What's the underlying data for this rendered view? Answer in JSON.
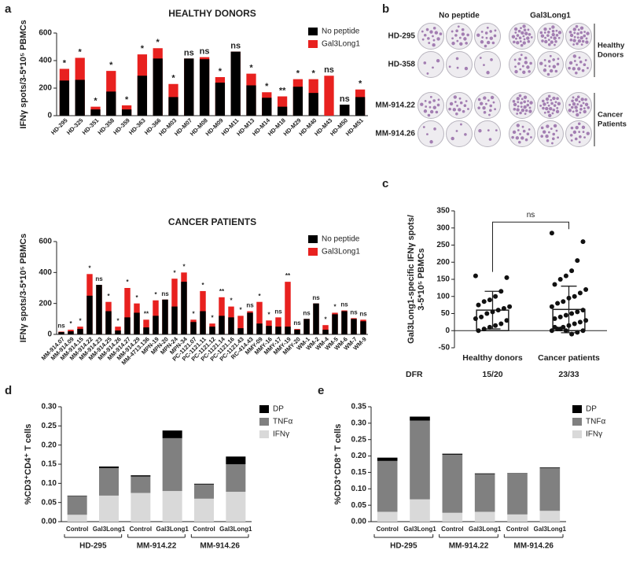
{
  "chart_data": [
    {
      "type": "bar",
      "bar_mode": "overlay",
      "panel_label": "a",
      "title": "HEALTHY DONORS",
      "y_label": [
        "IFNγ spots/3-5*10⁵ PBMCs"
      ],
      "legend": "upper right",
      "categories": [
        "HD-295",
        "HD-325",
        "HD-351",
        "HD-358",
        "HD-359",
        "HD-363",
        "HD-366",
        "HD-M03",
        "HD-M07",
        "HD-M08",
        "HD-M09",
        "HD-M11",
        "HD-M13",
        "HD-M14",
        "HD-M18",
        "HD-M29",
        "HD-M40",
        "HD-M43",
        "HD-M50",
        "HD-M51"
      ],
      "series": [
        {
          "name": "No peptide",
          "color": "#000000",
          "values": [
            255,
            260,
            45,
            175,
            45,
            290,
            415,
            135,
            415,
            410,
            240,
            465,
            220,
            130,
            65,
            210,
            165,
            0,
            80,
            135
          ]
        },
        {
          "name": "Gal3Long1",
          "color": "#e8211f",
          "values": [
            340,
            420,
            65,
            325,
            75,
            445,
            490,
            230,
            415,
            425,
            280,
            465,
            305,
            170,
            140,
            265,
            265,
            290,
            80,
            190
          ]
        }
      ],
      "annotations": [
        "*",
        "*",
        "*",
        "*",
        "*",
        "*",
        "*",
        "*",
        "ns",
        "ns",
        "*",
        "ns",
        "*",
        "*",
        "**",
        "*",
        "*",
        "ns",
        "ns",
        "*"
      ],
      "ylim": [
        0,
        600
      ],
      "yticks": [
        0,
        200,
        400,
        600
      ]
    },
    {
      "type": "bar",
      "bar_mode": "overlay",
      "title": "CANCER PATIENTS",
      "y_label": [
        "IFNγ spots/3-5*10⁵ PBMCs"
      ],
      "legend": "upper right",
      "categories": [
        "MM-914.07",
        "MM-914.09",
        "MM-914.15",
        "MM-914.22",
        "MM-914.23",
        "MM-914.25",
        "MM-914.26",
        "MM-914.27",
        "MM-914.29",
        "MM-4713.136",
        "MPN-19",
        "MPN-20",
        "MPN-24",
        "MPN-34",
        "PC-1121.07",
        "PC-1121.11",
        "PC-1121.12",
        "PC-1121.14",
        "PC-1121.16",
        "PC-1121.43",
        "RC-414.43",
        "MMY-09",
        "MMY-16",
        "MMY-17",
        "MMY-19",
        "MMY-20",
        "WM-1",
        "WM-2",
        "WM-4",
        "WM-5",
        "WM-6",
        "WM-7",
        "WM-9"
      ],
      "series": [
        {
          "name": "No peptide",
          "color": "#000000",
          "values": [
            15,
            20,
            35,
            250,
            320,
            150,
            25,
            110,
            140,
            45,
            120,
            225,
            180,
            340,
            80,
            150,
            50,
            120,
            110,
            40,
            140,
            70,
            55,
            50,
            50,
            30,
            100,
            200,
            30,
            130,
            150,
            100,
            85
          ]
        },
        {
          "name": "Gal3Long1",
          "color": "#e8211f",
          "values": [
            18,
            30,
            50,
            390,
            320,
            210,
            50,
            300,
            200,
            95,
            220,
            225,
            360,
            400,
            95,
            280,
            70,
            240,
            180,
            120,
            150,
            210,
            90,
            110,
            340,
            35,
            100,
            200,
            60,
            140,
            155,
            105,
            95
          ]
        }
      ],
      "annotations": [
        "ns",
        "*",
        "*",
        "*",
        "ns",
        "*",
        "*",
        "*",
        "*",
        "**",
        "*",
        "ns",
        "*",
        "*",
        "*",
        "*",
        "*",
        "**",
        "*",
        "*",
        "ns",
        "*",
        "*",
        "ns",
        "**",
        "ns",
        "ns",
        "ns",
        "*",
        "*",
        "ns",
        "ns",
        "ns"
      ],
      "ylim": [
        0,
        600
      ],
      "yticks": [
        0,
        200,
        400,
        600
      ]
    },
    {
      "type": "scatter",
      "panel_label": "c",
      "y_label": [
        "Gal3Long1-specific IFNγ spots/",
        "3-5*10⁵ PBMCs"
      ],
      "categories": [
        "Healthy donors",
        "Cancer patients"
      ],
      "means": [
        60,
        62
      ],
      "sds": [
        55,
        68
      ],
      "points": [
        [
          160,
          155,
          115,
          100,
          90,
          85,
          75,
          70,
          65,
          60,
          55,
          50,
          40,
          35,
          30,
          20,
          15,
          10,
          5,
          0
        ],
        [
          285,
          260,
          205,
          175,
          160,
          150,
          135,
          120,
          110,
          100,
          95,
          85,
          80,
          70,
          60,
          55,
          50,
          45,
          40,
          35,
          30,
          25,
          20,
          15,
          10,
          5,
          0,
          0,
          -5,
          -10,
          0,
          5,
          10
        ]
      ],
      "annotation": "ns",
      "footer_label": "DFR",
      "footer_values": [
        "15/20",
        "23/33"
      ],
      "ylim": [
        -50,
        350
      ],
      "yticks": [
        -50,
        0,
        50,
        100,
        150,
        200,
        250,
        300,
        350
      ]
    },
    {
      "type": "bar",
      "bar_mode": "stacked",
      "panel_label": "d",
      "y_label": [
        "%CD3⁺CD4⁺ T cells"
      ],
      "legend": "right",
      "categories": [
        "Control",
        "Gal3Long1",
        "Control",
        "Gal3Long1",
        "Control",
        "Gal3Long1"
      ],
      "group_labels": [
        "HD-295",
        "MM-914.22",
        "MM-914.26"
      ],
      "series": [
        {
          "name": "IFNγ",
          "color": "#d9d9d9",
          "values": [
            0.018,
            0.068,
            0.075,
            0.08,
            0.06,
            0.078
          ]
        },
        {
          "name": "TNFα",
          "color": "#808080",
          "values": [
            0.049,
            0.072,
            0.043,
            0.138,
            0.037,
            0.072
          ]
        },
        {
          "name": "DP",
          "color": "#000000",
          "values": [
            0.001,
            0.004,
            0.003,
            0.02,
            0.002,
            0.02
          ]
        }
      ],
      "ylim": [
        0,
        0.3
      ],
      "yticks": [
        {
          "value": 0,
          "label": "0.00"
        },
        {
          "value": 0.05,
          "label": "0.05"
        },
        {
          "value": 0.1,
          "label": "0.10"
        },
        {
          "value": 0.15,
          "label": "0.15"
        },
        {
          "value": 0.2,
          "label": "0.20"
        },
        {
          "value": 0.25,
          "label": "0.25"
        },
        {
          "value": 0.3,
          "label": "0.30"
        }
      ]
    },
    {
      "type": "bar",
      "bar_mode": "stacked",
      "panel_label": "e",
      "y_label": [
        "%CD3⁺CD8⁺ T cells"
      ],
      "legend": "right",
      "categories": [
        "Control",
        "Gal3Long1",
        "Control",
        "Gal3Long1",
        "Control",
        "Gal3Long1"
      ],
      "group_labels": [
        "HD-295",
        "MM-914.22",
        "MM-914.26"
      ],
      "series": [
        {
          "name": "IFNγ",
          "color": "#d9d9d9",
          "values": [
            0.03,
            0.068,
            0.027,
            0.03,
            0.022,
            0.033
          ]
        },
        {
          "name": "TNFα",
          "color": "#808080",
          "values": [
            0.155,
            0.24,
            0.177,
            0.115,
            0.125,
            0.13
          ]
        },
        {
          "name": "DP",
          "color": "#000000",
          "values": [
            0.01,
            0.012,
            0.003,
            0.002,
            0.001,
            0.002
          ]
        }
      ],
      "ylim": [
        0,
        0.35
      ],
      "yticks": [
        {
          "value": 0,
          "label": "0.00"
        },
        {
          "value": 0.05,
          "label": "0.05"
        },
        {
          "value": 0.1,
          "label": "0.10"
        },
        {
          "value": 0.15,
          "label": "0.15"
        },
        {
          "value": 0.2,
          "label": "0.20"
        },
        {
          "value": 0.25,
          "label": "0.25"
        },
        {
          "value": 0.3,
          "label": "0.30"
        },
        {
          "value": 0.35,
          "label": "0.35"
        }
      ]
    }
  ],
  "panel_b": {
    "label": "b",
    "columns": [
      "No peptide",
      "Gal3Long1"
    ],
    "rows": [
      "HD-295",
      "HD-358",
      "MM-914.22",
      "MM-914.26"
    ],
    "groups": [
      [
        "Healthy",
        "Donors"
      ],
      [
        "Cancer",
        "Patients"
      ]
    ]
  }
}
